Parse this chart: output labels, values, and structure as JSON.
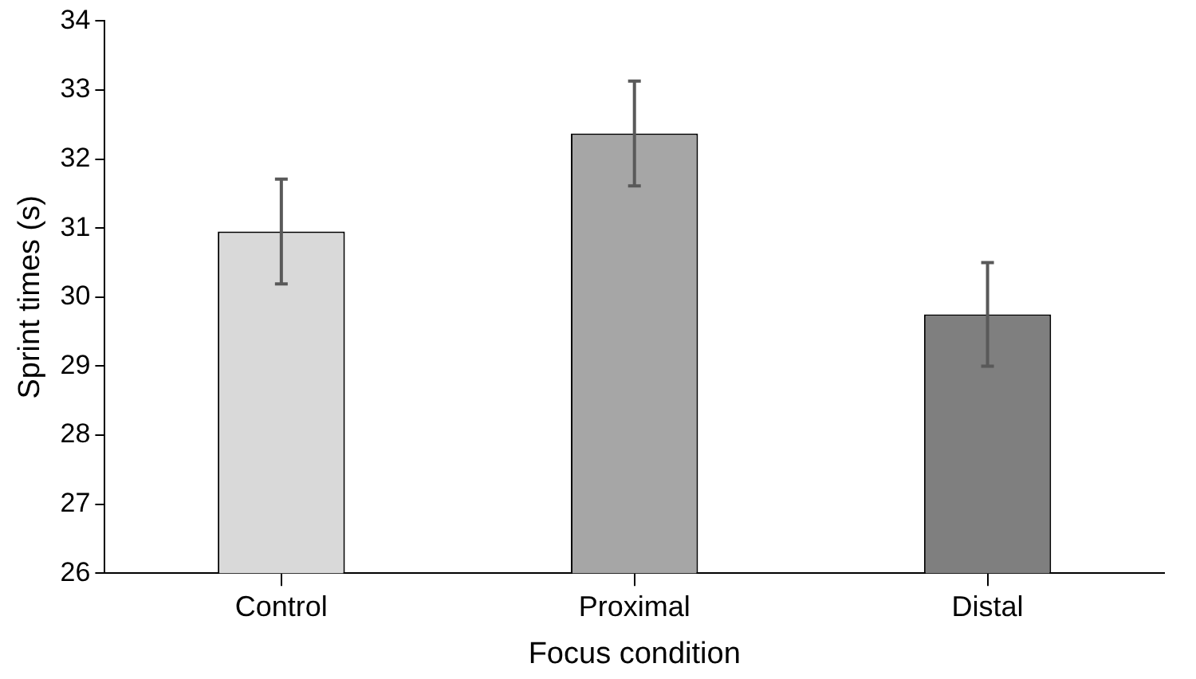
{
  "chart_data": {
    "type": "bar",
    "xlabel": "Focus condition",
    "ylabel": "Sprint times (s)",
    "categories": [
      "Control",
      "Proximal",
      "Distal"
    ],
    "values": [
      30.95,
      32.37,
      29.75
    ],
    "colors": [
      "#d9d9d9",
      "#a6a6a6",
      "#7f7f7f"
    ],
    "errors": [
      0.76,
      0.76,
      0.75
    ],
    "ylim": [
      26,
      34
    ],
    "yticks": [
      26,
      27,
      28,
      29,
      30,
      31,
      32,
      33,
      34
    ],
    "grid": false,
    "legend": false
  }
}
